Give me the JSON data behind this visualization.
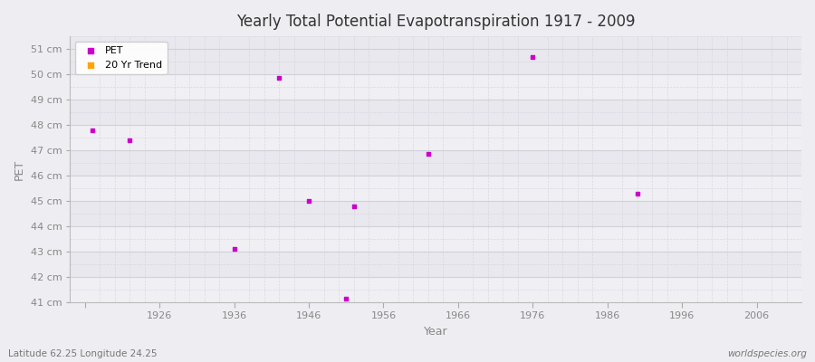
{
  "title": "Yearly Total Potential Evapotranspiration 1917 - 2009",
  "xlabel": "Year",
  "ylabel": "PET",
  "subtitle_left": "Latitude 62.25 Longitude 24.25",
  "subtitle_right": "worldspecies.org",
  "ylim": [
    41,
    51.5
  ],
  "xlim": [
    1914,
    2012
  ],
  "yticks": [
    41,
    42,
    43,
    44,
    45,
    46,
    47,
    48,
    49,
    50,
    51
  ],
  "ytick_labels": [
    "41 cm",
    "42 cm",
    "43 cm",
    "44 cm",
    "45 cm",
    "46 cm",
    "47 cm",
    "48 cm",
    "49 cm",
    "50 cm",
    "51 cm"
  ],
  "xticks": [
    1916,
    1926,
    1936,
    1946,
    1956,
    1966,
    1976,
    1986,
    1996,
    2006
  ],
  "xtick_labels": [
    "",
    "1926",
    "1936",
    "1946",
    "1956",
    "1966",
    "1976",
    "1986",
    "1996",
    "2006"
  ],
  "pet_data": [
    [
      1917,
      47.8
    ],
    [
      1922,
      47.4
    ],
    [
      1936,
      43.1
    ],
    [
      1942,
      49.85
    ],
    [
      1946,
      45.0
    ],
    [
      1951,
      41.15
    ],
    [
      1952,
      44.8
    ],
    [
      1962,
      46.85
    ],
    [
      1976,
      50.7
    ],
    [
      1990,
      45.3
    ]
  ],
  "pet_color": "#cc00cc",
  "trend_color": "#ffa500",
  "bg_color": "#eeeef2",
  "band_color_even": "#e8e8ee",
  "band_color_odd": "#f0f0f4",
  "grid_major_color": "#d0d0d8",
  "grid_minor_color": "#d8d8e0",
  "legend_entries": [
    "PET",
    "20 Yr Trend"
  ],
  "axis_label_color": "#888888",
  "tick_label_color": "#888888",
  "title_color": "#333333"
}
